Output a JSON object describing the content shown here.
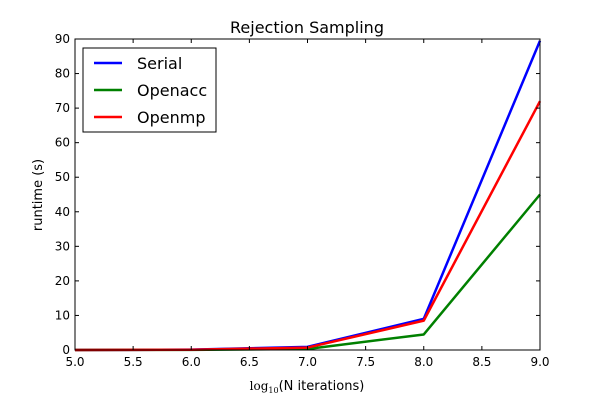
{
  "chart_data": {
    "type": "line",
    "title": "Rejection Sampling",
    "xlabel": "log10(N iterations)",
    "xlabel_parts": {
      "log": "log",
      "sub": "10",
      "rest": "(N iterations)"
    },
    "ylabel": "runtime (s)",
    "xlim": [
      5.0,
      9.0
    ],
    "ylim": [
      0,
      90
    ],
    "xticks": [
      "5.0",
      "5.5",
      "6.0",
      "6.5",
      "7.0",
      "7.5",
      "8.0",
      "8.5",
      "9.0"
    ],
    "yticks": [
      "0",
      "10",
      "20",
      "30",
      "40",
      "50",
      "60",
      "70",
      "80",
      "90"
    ],
    "grid": false,
    "legend_position": "top-left",
    "x": [
      5,
      6,
      7,
      8,
      9
    ],
    "series": [
      {
        "name": "Serial",
        "color": "#0000ff",
        "values": [
          0.01,
          0.1,
          0.9,
          9.0,
          89.5
        ]
      },
      {
        "name": "Openacc",
        "color": "#008000",
        "values": [
          0.01,
          0.05,
          0.3,
          4.5,
          45.0
        ]
      },
      {
        "name": "Openmp",
        "color": "#ff0000",
        "values": [
          0.01,
          0.08,
          0.7,
          8.5,
          72.0
        ]
      }
    ]
  }
}
